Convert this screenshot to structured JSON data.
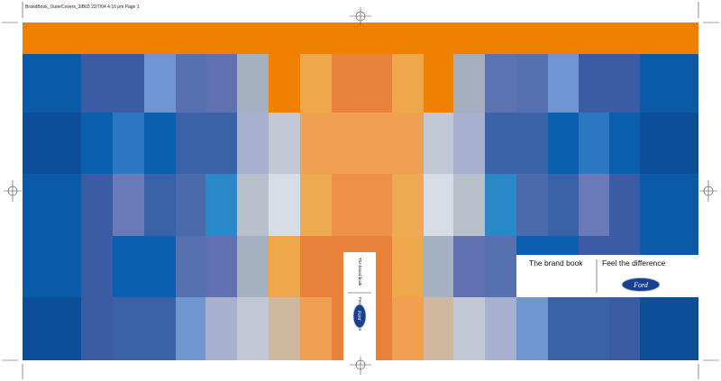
{
  "header": {
    "slug": "BrandBook_OuterCovers_3IB03   22/7/04   4:16 pm   Page 1"
  },
  "spine": {
    "title": "The brand book",
    "tagline": "Feel the difference",
    "logo": "Ford"
  },
  "front_cover": {
    "title": "The brand book",
    "tagline": "Feel the difference",
    "logo": "Ford"
  }
}
